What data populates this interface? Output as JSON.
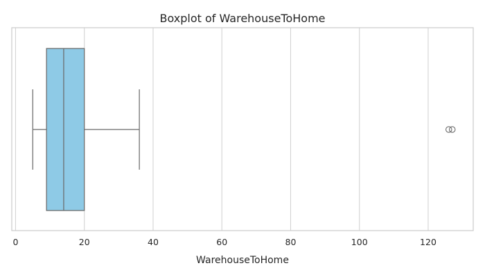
{
  "chart_data": {
    "type": "box",
    "title": "Boxplot of WarehouseToHome",
    "xlabel": "WarehouseToHome",
    "ylabel": "",
    "xlim": [
      -1.1,
      133.1
    ],
    "xticks": [
      0,
      20,
      40,
      60,
      80,
      100,
      120
    ],
    "grid": true,
    "orientation": "horizontal",
    "series": [
      {
        "whisker_low": 5,
        "q1": 9,
        "median": 14,
        "q3": 20,
        "whisker_high": 36,
        "outliers": [
          126,
          127
        ]
      }
    ],
    "colors": {
      "box_fill": "#8ecae6",
      "box_edge": "#6b6b6b",
      "grid": "#d3d3d3",
      "frame": "#cccccc"
    }
  }
}
